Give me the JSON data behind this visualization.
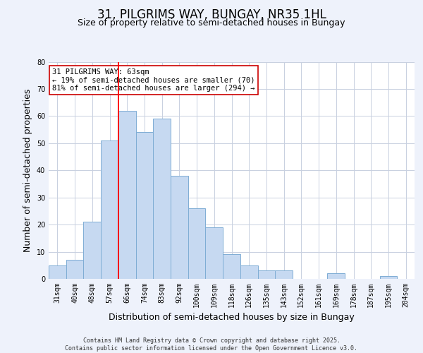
{
  "title": "31, PILGRIMS WAY, BUNGAY, NR35 1HL",
  "subtitle": "Size of property relative to semi-detached houses in Bungay",
  "xlabel": "Distribution of semi-detached houses by size in Bungay",
  "ylabel": "Number of semi-detached properties",
  "bin_labels": [
    "31sqm",
    "40sqm",
    "48sqm",
    "57sqm",
    "66sqm",
    "74sqm",
    "83sqm",
    "92sqm",
    "100sqm",
    "109sqm",
    "118sqm",
    "126sqm",
    "135sqm",
    "143sqm",
    "152sqm",
    "161sqm",
    "169sqm",
    "178sqm",
    "187sqm",
    "195sqm",
    "204sqm"
  ],
  "bin_values": [
    5,
    7,
    21,
    51,
    62,
    54,
    59,
    38,
    26,
    19,
    9,
    5,
    3,
    3,
    0,
    0,
    2,
    0,
    0,
    1,
    0
  ],
  "bar_color": "#c6d9f1",
  "bar_edge_color": "#7eadd4",
  "highlight_line_color": "red",
  "highlight_line_bin": 4,
  "annotation_line1": "31 PILGRIMS WAY: 63sqm",
  "annotation_line2": "← 19% of semi-detached houses are smaller (70)",
  "annotation_line3": "81% of semi-detached houses are larger (294) →",
  "annotation_box_color": "white",
  "annotation_box_edge_color": "#cc0000",
  "ylim": [
    0,
    80
  ],
  "yticks": [
    0,
    10,
    20,
    30,
    40,
    50,
    60,
    70,
    80
  ],
  "background_color": "#eef2fb",
  "plot_background_color": "#ffffff",
  "grid_color": "#c8d0e0",
  "footer_text": "Contains HM Land Registry data © Crown copyright and database right 2025.\nContains public sector information licensed under the Open Government Licence v3.0.",
  "title_fontsize": 12,
  "subtitle_fontsize": 9,
  "axis_label_fontsize": 9,
  "tick_fontsize": 7,
  "footer_fontsize": 6,
  "ann_fontsize": 7.5
}
